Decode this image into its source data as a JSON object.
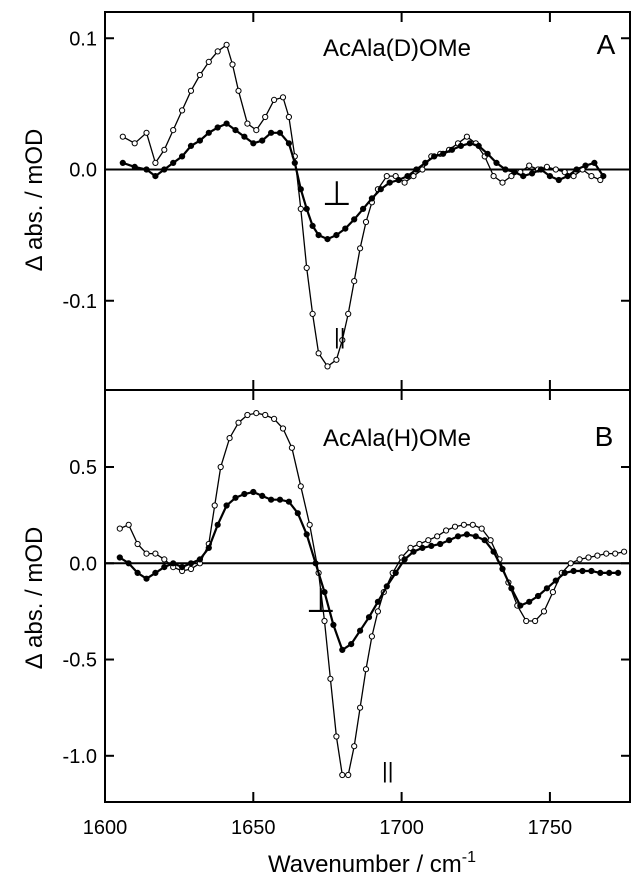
{
  "chart_data": [
    {
      "panel": "A",
      "type": "line",
      "annotation": "AcAla(D)OMe",
      "xlabel": "Wavenumber / cm-1",
      "ylabel": "Δ abs. / mOD",
      "xlim": [
        1600,
        1777
      ],
      "ylim": [
        -0.168,
        0.12
      ],
      "yticks": [
        0.1,
        0.0,
        -0.1
      ],
      "ytick_labels": [
        "0.1",
        "0.0",
        "-0.1"
      ],
      "markers": {
        "perpendicular": "⊥",
        "parallel": "||"
      },
      "series": [
        {
          "key": "parallel",
          "style": "open",
          "points": [
            [
              1606,
              0.025
            ],
            [
              1610,
              0.02
            ],
            [
              1614,
              0.028
            ],
            [
              1617,
              0.005
            ],
            [
              1620,
              0.015
            ],
            [
              1623,
              0.03
            ],
            [
              1626,
              0.045
            ],
            [
              1629,
              0.06
            ],
            [
              1632,
              0.072
            ],
            [
              1635,
              0.082
            ],
            [
              1638,
              0.09
            ],
            [
              1641,
              0.095
            ],
            [
              1643,
              0.08
            ],
            [
              1645,
              0.06
            ],
            [
              1648,
              0.035
            ],
            [
              1651,
              0.03
            ],
            [
              1654,
              0.04
            ],
            [
              1657,
              0.053
            ],
            [
              1660,
              0.055
            ],
            [
              1662,
              0.04
            ],
            [
              1664,
              0.01
            ],
            [
              1666,
              -0.03
            ],
            [
              1668,
              -0.075
            ],
            [
              1670,
              -0.11
            ],
            [
              1672,
              -0.14
            ],
            [
              1675,
              -0.15
            ],
            [
              1678,
              -0.145
            ],
            [
              1680,
              -0.13
            ],
            [
              1682,
              -0.11
            ],
            [
              1684,
              -0.085
            ],
            [
              1686,
              -0.06
            ],
            [
              1688,
              -0.04
            ],
            [
              1690,
              -0.025
            ],
            [
              1692,
              -0.015
            ],
            [
              1695,
              -0.005
            ],
            [
              1698,
              -0.005
            ],
            [
              1701,
              -0.01
            ],
            [
              1704,
              -0.005
            ],
            [
              1707,
              0.0
            ],
            [
              1710,
              0.01
            ],
            [
              1713,
              0.012
            ],
            [
              1716,
              0.015
            ],
            [
              1719,
              0.02
            ],
            [
              1722,
              0.025
            ],
            [
              1725,
              0.02
            ],
            [
              1728,
              0.01
            ],
            [
              1731,
              -0.005
            ],
            [
              1734,
              -0.01
            ],
            [
              1737,
              -0.005
            ],
            [
              1740,
              -0.002
            ],
            [
              1743,
              0.003
            ],
            [
              1746,
              0.0
            ],
            [
              1749,
              0.002
            ],
            [
              1752,
              0.0
            ],
            [
              1755,
              -0.002
            ],
            [
              1758,
              -0.005
            ],
            [
              1761,
              0.0
            ],
            [
              1764,
              -0.005
            ],
            [
              1767,
              -0.008
            ]
          ]
        },
        {
          "key": "perpendicular",
          "style": "filled",
          "points": [
            [
              1606,
              0.005
            ],
            [
              1610,
              0.002
            ],
            [
              1614,
              0.0
            ],
            [
              1617,
              -0.005
            ],
            [
              1620,
              0.0
            ],
            [
              1623,
              0.005
            ],
            [
              1626,
              0.01
            ],
            [
              1629,
              0.018
            ],
            [
              1632,
              0.022
            ],
            [
              1635,
              0.028
            ],
            [
              1638,
              0.032
            ],
            [
              1641,
              0.035
            ],
            [
              1644,
              0.03
            ],
            [
              1647,
              0.025
            ],
            [
              1650,
              0.02
            ],
            [
              1653,
              0.022
            ],
            [
              1656,
              0.028
            ],
            [
              1659,
              0.028
            ],
            [
              1662,
              0.02
            ],
            [
              1664,
              0.005
            ],
            [
              1666,
              -0.015
            ],
            [
              1668,
              -0.03
            ],
            [
              1670,
              -0.043
            ],
            [
              1672,
              -0.05
            ],
            [
              1675,
              -0.053
            ],
            [
              1678,
              -0.05
            ],
            [
              1681,
              -0.045
            ],
            [
              1684,
              -0.038
            ],
            [
              1687,
              -0.03
            ],
            [
              1690,
              -0.022
            ],
            [
              1693,
              -0.015
            ],
            [
              1696,
              -0.01
            ],
            [
              1699,
              -0.008
            ],
            [
              1702,
              -0.005
            ],
            [
              1705,
              0.0
            ],
            [
              1708,
              0.005
            ],
            [
              1711,
              0.01
            ],
            [
              1714,
              0.012
            ],
            [
              1717,
              0.015
            ],
            [
              1720,
              0.018
            ],
            [
              1723,
              0.02
            ],
            [
              1726,
              0.018
            ],
            [
              1729,
              0.012
            ],
            [
              1732,
              0.005
            ],
            [
              1735,
              0.0
            ],
            [
              1738,
              -0.002
            ],
            [
              1741,
              -0.005
            ],
            [
              1744,
              -0.003
            ],
            [
              1747,
              0.0
            ],
            [
              1750,
              -0.005
            ],
            [
              1753,
              -0.008
            ],
            [
              1756,
              -0.005
            ],
            [
              1759,
              0.0
            ],
            [
              1762,
              0.003
            ],
            [
              1765,
              0.005
            ],
            [
              1768,
              -0.005
            ]
          ]
        }
      ]
    },
    {
      "panel": "B",
      "type": "line",
      "annotation": "AcAla(H)OMe",
      "xlabel": "Wavenumber / cm-1",
      "ylabel": "Δ abs. / mOD",
      "xlim": [
        1600,
        1777
      ],
      "ylim": [
        -1.24,
        0.9
      ],
      "yticks": [
        0.5,
        0.0,
        -0.5,
        -1.0
      ],
      "ytick_labels": [
        "0.5",
        "0.0",
        "-0.5",
        "-1.0"
      ],
      "markers": {
        "perpendicular": "⊥",
        "parallel": "||"
      },
      "series": [
        {
          "key": "parallel",
          "style": "open",
          "points": [
            [
              1605,
              0.18
            ],
            [
              1608,
              0.2
            ],
            [
              1611,
              0.1
            ],
            [
              1614,
              0.05
            ],
            [
              1617,
              0.05
            ],
            [
              1620,
              0.02
            ],
            [
              1623,
              -0.02
            ],
            [
              1626,
              -0.04
            ],
            [
              1629,
              -0.03
            ],
            [
              1632,
              0.0
            ],
            [
              1635,
              0.1
            ],
            [
              1637,
              0.3
            ],
            [
              1639,
              0.5
            ],
            [
              1642,
              0.65
            ],
            [
              1645,
              0.73
            ],
            [
              1648,
              0.77
            ],
            [
              1651,
              0.78
            ],
            [
              1654,
              0.77
            ],
            [
              1657,
              0.75
            ],
            [
              1660,
              0.7
            ],
            [
              1663,
              0.6
            ],
            [
              1666,
              0.4
            ],
            [
              1669,
              0.2
            ],
            [
              1672,
              -0.05
            ],
            [
              1674,
              -0.3
            ],
            [
              1676,
              -0.6
            ],
            [
              1678,
              -0.9
            ],
            [
              1680,
              -1.1
            ],
            [
              1682,
              -1.1
            ],
            [
              1684,
              -0.95
            ],
            [
              1686,
              -0.75
            ],
            [
              1688,
              -0.55
            ],
            [
              1690,
              -0.38
            ],
            [
              1692,
              -0.25
            ],
            [
              1694,
              -0.15
            ],
            [
              1697,
              -0.05
            ],
            [
              1700,
              0.03
            ],
            [
              1703,
              0.08
            ],
            [
              1706,
              0.1
            ],
            [
              1709,
              0.12
            ],
            [
              1712,
              0.14
            ],
            [
              1715,
              0.17
            ],
            [
              1718,
              0.19
            ],
            [
              1721,
              0.2
            ],
            [
              1724,
              0.2
            ],
            [
              1727,
              0.18
            ],
            [
              1730,
              0.12
            ],
            [
              1733,
              0.02
            ],
            [
              1736,
              -0.1
            ],
            [
              1739,
              -0.22
            ],
            [
              1742,
              -0.3
            ],
            [
              1745,
              -0.3
            ],
            [
              1748,
              -0.25
            ],
            [
              1751,
              -0.15
            ],
            [
              1754,
              -0.05
            ],
            [
              1757,
              0.0
            ],
            [
              1760,
              0.02
            ],
            [
              1763,
              0.03
            ],
            [
              1766,
              0.04
            ],
            [
              1769,
              0.05
            ],
            [
              1772,
              0.05
            ],
            [
              1775,
              0.06
            ]
          ]
        },
        {
          "key": "perpendicular",
          "style": "filled",
          "points": [
            [
              1605,
              0.03
            ],
            [
              1608,
              0.0
            ],
            [
              1611,
              -0.05
            ],
            [
              1614,
              -0.08
            ],
            [
              1617,
              -0.05
            ],
            [
              1620,
              -0.02
            ],
            [
              1623,
              0.0
            ],
            [
              1626,
              -0.02
            ],
            [
              1629,
              0.0
            ],
            [
              1632,
              0.02
            ],
            [
              1635,
              0.08
            ],
            [
              1638,
              0.2
            ],
            [
              1641,
              0.3
            ],
            [
              1644,
              0.34
            ],
            [
              1647,
              0.36
            ],
            [
              1650,
              0.37
            ],
            [
              1653,
              0.35
            ],
            [
              1656,
              0.33
            ],
            [
              1659,
              0.33
            ],
            [
              1662,
              0.32
            ],
            [
              1665,
              0.26
            ],
            [
              1668,
              0.15
            ],
            [
              1671,
              0.0
            ],
            [
              1674,
              -0.15
            ],
            [
              1677,
              -0.32
            ],
            [
              1680,
              -0.45
            ],
            [
              1683,
              -0.42
            ],
            [
              1686,
              -0.35
            ],
            [
              1689,
              -0.28
            ],
            [
              1692,
              -0.2
            ],
            [
              1695,
              -0.12
            ],
            [
              1698,
              -0.05
            ],
            [
              1701,
              0.02
            ],
            [
              1704,
              0.06
            ],
            [
              1707,
              0.08
            ],
            [
              1710,
              0.09
            ],
            [
              1713,
              0.1
            ],
            [
              1716,
              0.12
            ],
            [
              1719,
              0.14
            ],
            [
              1722,
              0.15
            ],
            [
              1725,
              0.14
            ],
            [
              1728,
              0.12
            ],
            [
              1731,
              0.06
            ],
            [
              1734,
              -0.03
            ],
            [
              1737,
              -0.13
            ],
            [
              1740,
              -0.22
            ],
            [
              1743,
              -0.2
            ],
            [
              1746,
              -0.17
            ],
            [
              1749,
              -0.13
            ],
            [
              1752,
              -0.09
            ],
            [
              1755,
              -0.05
            ],
            [
              1758,
              -0.04
            ],
            [
              1761,
              -0.04
            ],
            [
              1764,
              -0.04
            ],
            [
              1767,
              -0.05
            ],
            [
              1770,
              -0.05
            ],
            [
              1773,
              -0.05
            ]
          ]
        }
      ]
    }
  ],
  "xaxis": {
    "ticks": [
      1600,
      1650,
      1700,
      1750
    ],
    "tick_labels": [
      "1600",
      "1650",
      "1700",
      "1750"
    ],
    "label": "Wavenumber / cm",
    "label_sup": "-1"
  }
}
